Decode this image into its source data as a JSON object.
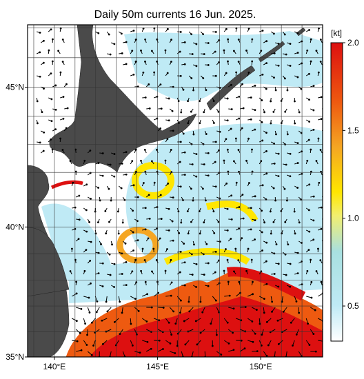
{
  "map": {
    "title": "Daily 50m currents 16 Jun. 2025.",
    "lat_range": [
      35,
      47.1
    ],
    "lon_range": [
      138.7,
      153.0
    ],
    "lat_ticks": [
      {
        "value": 45,
        "label": "45°N"
      },
      {
        "value": 40,
        "label": "40°N"
      },
      {
        "value": 35,
        "label": "35°N"
      }
    ],
    "lon_ticks": [
      {
        "value": 140,
        "label": "140°E"
      },
      {
        "value": 145,
        "label": "145°E"
      },
      {
        "value": 150,
        "label": "150°E"
      }
    ],
    "grid_lats": [
      36,
      37,
      38,
      39,
      40,
      41,
      42,
      43,
      44,
      45,
      46,
      47
    ],
    "grid_lons": [
      139,
      140,
      141,
      142,
      143,
      144,
      145,
      146,
      147,
      148,
      149,
      150,
      151,
      152
    ],
    "colorbar": {
      "unit": "[kt]",
      "range": [
        0.3,
        2.0
      ],
      "ticks": [
        {
          "value": 2.0,
          "label": "2.0"
        },
        {
          "value": 1.5,
          "label": "1.5"
        },
        {
          "value": 1.0,
          "label": "1.0"
        },
        {
          "value": 0.5,
          "label": "0.5"
        }
      ]
    }
  }
}
